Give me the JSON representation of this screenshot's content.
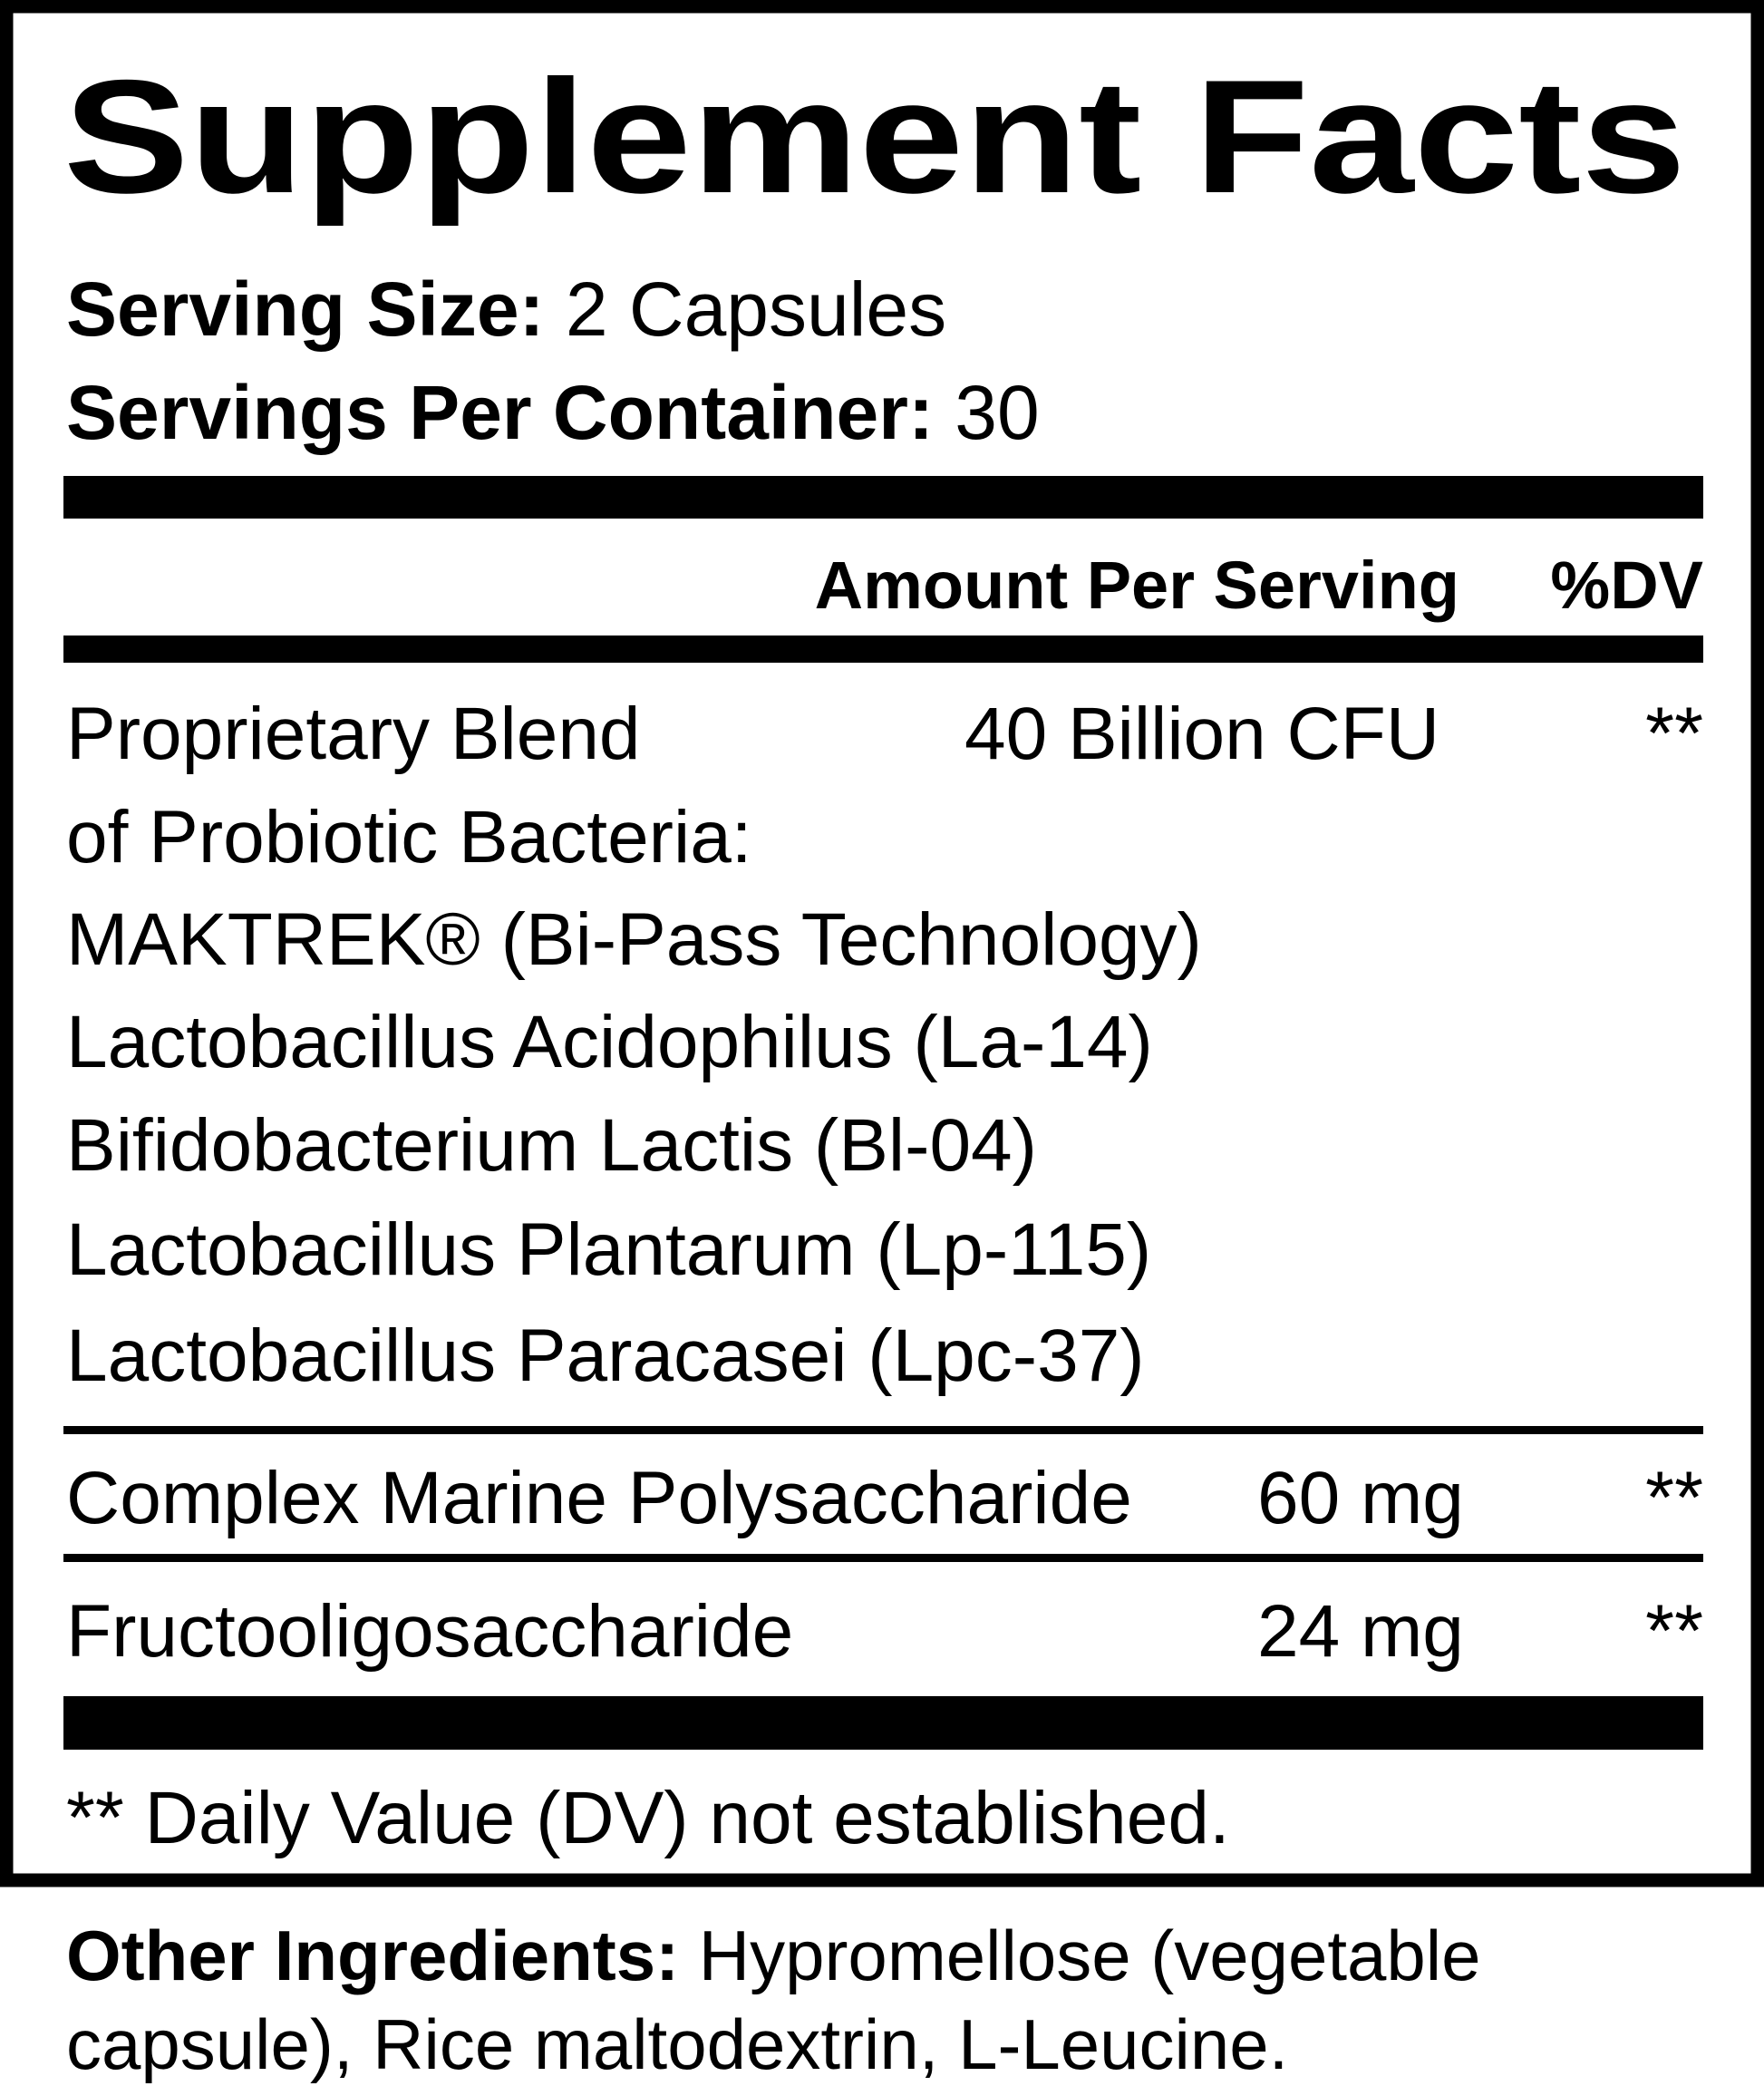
{
  "title": "Supplement Facts",
  "serving_size": {
    "label": "Serving Size:",
    "value": "2 Capsules"
  },
  "servings_per_container": {
    "label": "Servings Per Container:",
    "value": "30"
  },
  "header": {
    "amount": "Amount Per Serving",
    "dv": "%DV"
  },
  "blend": {
    "lines": [
      "Proprietary Blend",
      "of Probiotic Bacteria:",
      "MAKTREK® (Bi-Pass Technology)",
      "Lactobacillus Acidophilus (La-14)",
      "Bifidobacterium Lactis (Bl-04)",
      "Lactobacillus Plantarum (Lp-115)",
      "Lactobacillus Paracasei (Lpc-37)"
    ],
    "amount": "40 Billion CFU",
    "dv": "**"
  },
  "rows": [
    {
      "name": "Complex Marine Polysaccharide",
      "amount": "60 mg",
      "dv": "**"
    },
    {
      "name": "Fructooligosaccharide",
      "amount": "24 mg",
      "dv": "**"
    }
  ],
  "footnote": "** Daily Value (DV) not established.",
  "other_ingredients": {
    "label": "Other Ingredients:",
    "line1": "Hypromellose (vegetable",
    "line2": "capsule), Rice maltodextrin, L-Leucine."
  }
}
